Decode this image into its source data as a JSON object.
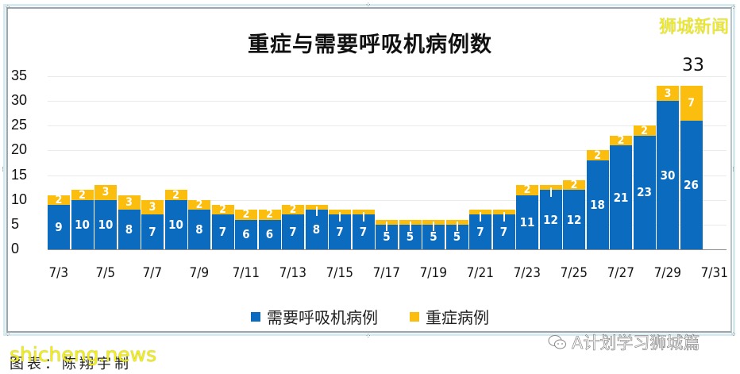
{
  "chart_data": {
    "type": "bar",
    "stacked": true,
    "title": "重症与需要呼吸机病例数",
    "xlabel": "",
    "ylabel": "",
    "ylim": [
      0,
      35
    ],
    "yticks": [
      0,
      5,
      10,
      15,
      20,
      25,
      30,
      35
    ],
    "grid": true,
    "legend_position": "bottom",
    "categories": [
      "7/3",
      "7/4",
      "7/5",
      "7/6",
      "7/7",
      "7/8",
      "7/9",
      "7/10",
      "7/11",
      "7/12",
      "7/13",
      "7/14",
      "7/15",
      "7/16",
      "7/17",
      "7/18",
      "7/19",
      "7/20",
      "7/21",
      "7/22",
      "7/23",
      "7/24",
      "7/25",
      "7/26",
      "7/27",
      "7/28",
      "7/29",
      "7/30"
    ],
    "xtick_labels": [
      "7/3",
      "7/5",
      "7/7",
      "7/9",
      "7/11",
      "7/13",
      "7/15",
      "7/17",
      "7/19",
      "7/21",
      "7/23",
      "7/25",
      "7/27",
      "7/29",
      "7/31"
    ],
    "series": [
      {
        "name": "需要呼吸机病例",
        "color": "#0a6bbf",
        "values": [
          9,
          10,
          10,
          8,
          7,
          10,
          8,
          7,
          6,
          6,
          7,
          8,
          7,
          7,
          5,
          5,
          5,
          5,
          7,
          7,
          11,
          12,
          12,
          18,
          21,
          23,
          30,
          26
        ],
        "labels_shown": [
          true,
          true,
          true,
          true,
          true,
          true,
          true,
          true,
          true,
          true,
          true,
          true,
          true,
          true,
          true,
          true,
          true,
          true,
          true,
          true,
          true,
          true,
          true,
          true,
          true,
          true,
          true,
          true
        ]
      },
      {
        "name": "重症病例",
        "color": "#fbbd0e",
        "values": [
          2,
          2,
          3,
          3,
          3,
          2,
          2,
          2,
          2,
          2,
          2,
          1,
          1,
          1,
          1,
          1,
          1,
          1,
          1,
          1,
          2,
          1,
          2,
          2,
          2,
          2,
          3,
          7
        ],
        "labels_shown": [
          true,
          true,
          true,
          true,
          true,
          true,
          true,
          true,
          true,
          true,
          true,
          false,
          false,
          false,
          false,
          false,
          false,
          false,
          false,
          false,
          true,
          false,
          true,
          true,
          true,
          true,
          true,
          true
        ]
      }
    ],
    "annotations": [
      {
        "text": "33",
        "category": "7/30"
      }
    ]
  },
  "brand_watermark": "狮城新闻",
  "legend": [
    {
      "label": "需要呼吸机病例",
      "color": "#0a6bbf"
    },
    {
      "label": "重症病例",
      "color": "#fbbd0e"
    }
  ],
  "caption": "图表：陈翔宇制",
  "watermark_left": "shicheng.news",
  "watermark_right": "A计划学习狮城篇"
}
